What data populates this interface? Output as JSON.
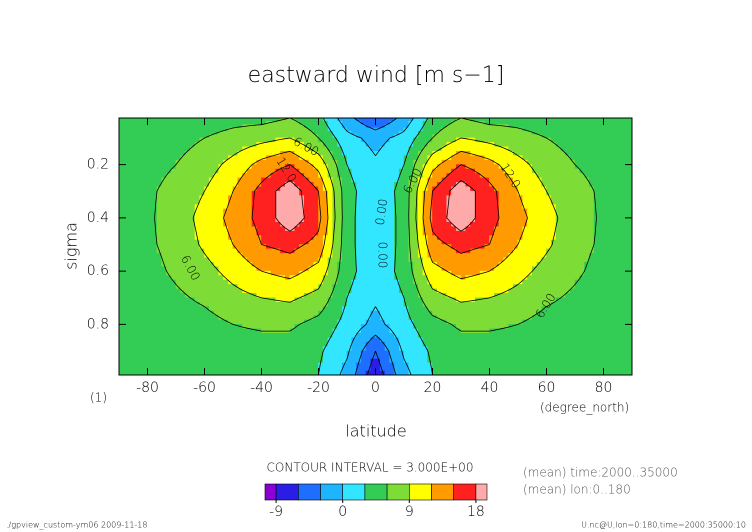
{
  "chart_data": {
    "type": "contour",
    "title": "eastward wind [m s−1]",
    "xlabel": "latitude",
    "xunit": "(degree_north)",
    "ylabel": "sigma",
    "panel_label": "(1)",
    "x": [
      -90,
      -80,
      -70,
      -60,
      -50,
      -40,
      -30,
      -20,
      -10,
      0,
      10,
      20,
      30,
      40,
      50,
      60,
      70,
      80,
      90
    ],
    "y": [
      0.025,
      0.1,
      0.2,
      0.3,
      0.4,
      0.5,
      0.6,
      0.7,
      0.8,
      0.9,
      0.99
    ],
    "z": [
      [
        4,
        4,
        4,
        4.5,
        5,
        5,
        6,
        4,
        -2,
        -6,
        -2,
        4,
        6,
        5,
        5,
        4.5,
        4,
        4,
        4
      ],
      [
        4,
        4.5,
        5,
        6,
        7,
        8,
        9,
        6,
        1,
        -1,
        1,
        6,
        9,
        8,
        7,
        6,
        5,
        4.5,
        4
      ],
      [
        4.5,
        5,
        6,
        7.5,
        10,
        13,
        15,
        11,
        3,
        0.5,
        3,
        11,
        15,
        13,
        10,
        7.5,
        6,
        5,
        4.5
      ],
      [
        4.5,
        5.5,
        7,
        9,
        12,
        16,
        20,
        15,
        4,
        1,
        4,
        15,
        20,
        16,
        12,
        9,
        7,
        5.5,
        4.5
      ],
      [
        4.5,
        5.5,
        7.5,
        10,
        13,
        16,
        20,
        16,
        4,
        0.5,
        4,
        16,
        20,
        16,
        13,
        10,
        7.5,
        5.5,
        4.5
      ],
      [
        4.5,
        5.5,
        7,
        9.5,
        12,
        15,
        16,
        14,
        4,
        0.5,
        4,
        14,
        16,
        15,
        12,
        9.5,
        7,
        5.5,
        4.5
      ],
      [
        4.5,
        5,
        6.5,
        8,
        10,
        12,
        13,
        11,
        4,
        1,
        4,
        11,
        13,
        12,
        10,
        8,
        6.5,
        5,
        4.5
      ],
      [
        4,
        4.5,
        5.5,
        6.5,
        8,
        9,
        9.5,
        8,
        3,
        0.5,
        3,
        8,
        9.5,
        9,
        8,
        6.5,
        5.5,
        4.5,
        4
      ],
      [
        4,
        4,
        4.5,
        5,
        6,
        6.5,
        6.5,
        5,
        2,
        -1,
        2,
        5,
        6.5,
        6.5,
        6,
        5,
        4.5,
        4,
        4
      ],
      [
        4,
        4,
        4,
        4,
        4.5,
        4.5,
        4.5,
        3.5,
        0.5,
        -6,
        0.5,
        3.5,
        4.5,
        4.5,
        4.5,
        4,
        4,
        4,
        4
      ],
      [
        4,
        4,
        4,
        4,
        4,
        4,
        4,
        3,
        -1,
        -8,
        -1,
        3,
        4,
        4,
        4,
        4,
        4,
        4,
        4
      ]
    ],
    "xlim": [
      -90,
      90
    ],
    "ylim": [
      0.99,
      0.025
    ],
    "xticks": [
      -80,
      -60,
      -40,
      -20,
      0,
      20,
      40,
      60,
      80
    ],
    "yticks": [
      0.2,
      0.4,
      0.6,
      0.8
    ],
    "levels": [
      -9,
      -6,
      -3,
      0,
      3,
      6,
      9,
      12,
      15,
      18
    ],
    "colors": [
      "#8a00d4",
      "#2a1ee6",
      "#1e6eff",
      "#1eb4ff",
      "#33e6ff",
      "#33cc55",
      "#7edc36",
      "#ffff00",
      "#ff9a00",
      "#ff2020",
      "#ffaaaa"
    ],
    "contour_labels": [
      "6.00",
      "12.0",
      "0.00"
    ],
    "contour_interval_text": "CONTOUR INTERVAL = 3.000E+00",
    "colorbar": {
      "lim": [
        -10.5,
        19.5
      ],
      "ticks": [
        -9,
        0,
        9,
        18
      ]
    },
    "notes": [
      "(mean) time:2000..35000",
      "(mean) lon:0..180"
    ],
    "footer_left": "./gpview_custom-ym06  2009-11-18",
    "footer_right": "U.nc@U,lon=0:180,time=2000:35000:10"
  }
}
